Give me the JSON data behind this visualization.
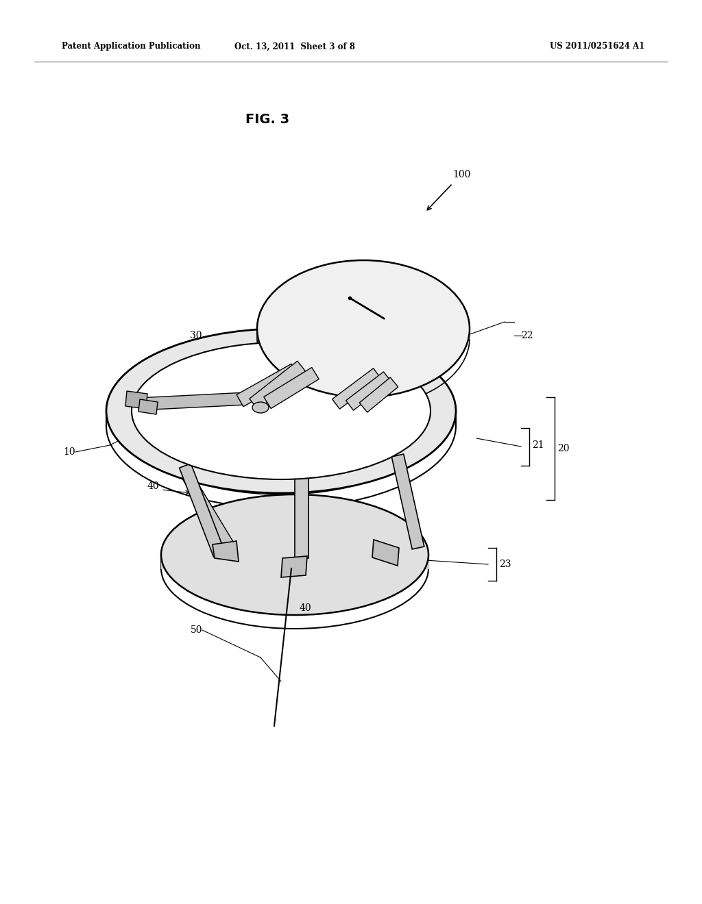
{
  "bg_color": "#ffffff",
  "header_left": "Patent Application Publication",
  "header_center": "Oct. 13, 2011  Sheet 3 of 8",
  "header_right": "US 2011/0251624 A1",
  "fig_title": "FIG. 3"
}
